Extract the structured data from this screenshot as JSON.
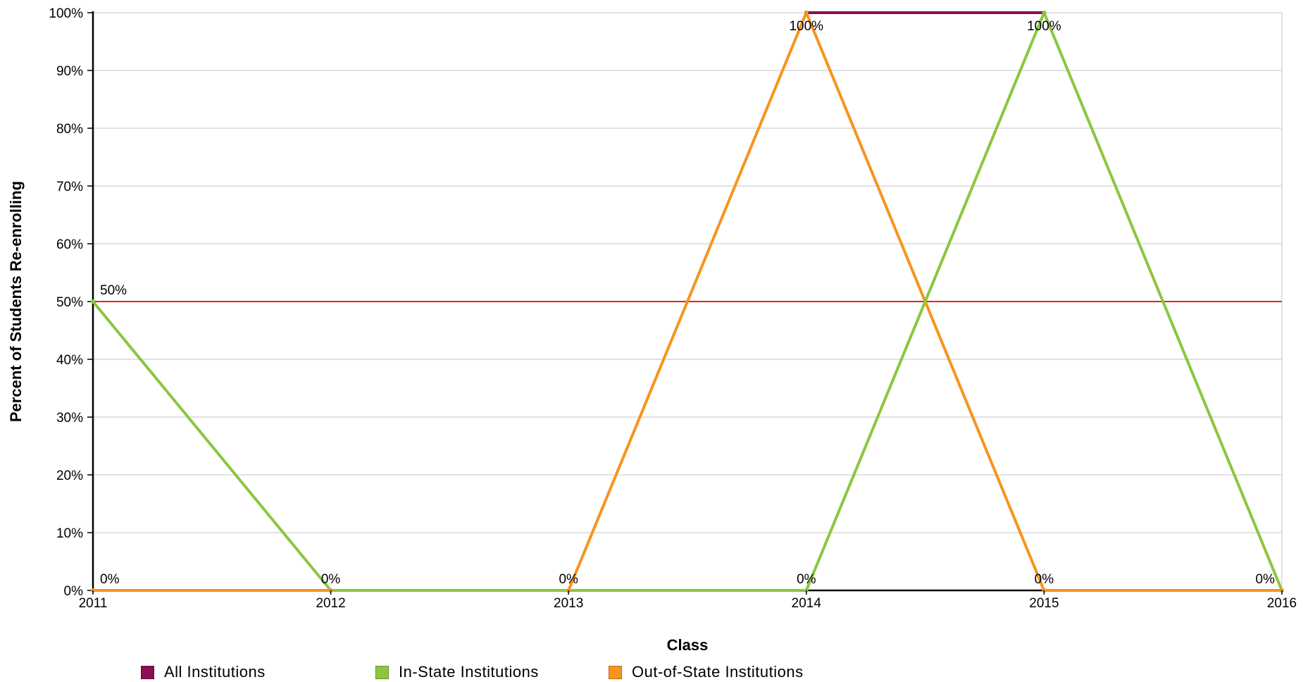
{
  "chart_data": {
    "type": "line",
    "title": "",
    "xlabel": "Class",
    "ylabel": "Percent of Students Re-enrolling",
    "x": [
      "2011",
      "2012",
      "2013",
      "2014",
      "2015",
      "2016"
    ],
    "ylim": [
      0,
      100
    ],
    "yticks": [
      0,
      10,
      20,
      30,
      40,
      50,
      60,
      70,
      80,
      90,
      100
    ],
    "ytick_labels": [
      "0%",
      "10%",
      "20%",
      "30%",
      "40%",
      "50%",
      "60%",
      "70%",
      "80%",
      "90%",
      "100%"
    ],
    "grid": true,
    "legend_position": "bottom",
    "reference_line": {
      "value": 50,
      "color": "#e8201c"
    },
    "series": [
      {
        "name": "All Institutions",
        "color": "#8b0f52",
        "values": [
          null,
          null,
          null,
          100,
          100,
          null
        ]
      },
      {
        "name": "In-State Institutions",
        "color": "#8cc63f",
        "values": [
          50,
          0,
          0,
          0,
          100,
          0
        ]
      },
      {
        "name": "Out-of-State Institutions",
        "color": "#f7941d",
        "values": [
          0,
          0,
          0,
          100,
          0,
          0
        ]
      }
    ],
    "data_labels": [
      {
        "text": "50%",
        "x": "2011",
        "y": 50
      },
      {
        "text": "0%",
        "x": "2011",
        "y": 0
      },
      {
        "text": "0%",
        "x": "2012",
        "y": 0
      },
      {
        "text": "0%",
        "x": "2013",
        "y": 0
      },
      {
        "text": "100%",
        "x": "2014",
        "y": 100
      },
      {
        "text": "0%",
        "x": "2014",
        "y": 0
      },
      {
        "text": "100%",
        "x": "2015",
        "y": 100
      },
      {
        "text": "0%",
        "x": "2015",
        "y": 0
      },
      {
        "text": "0%",
        "x": "2016",
        "y": 0
      }
    ]
  }
}
